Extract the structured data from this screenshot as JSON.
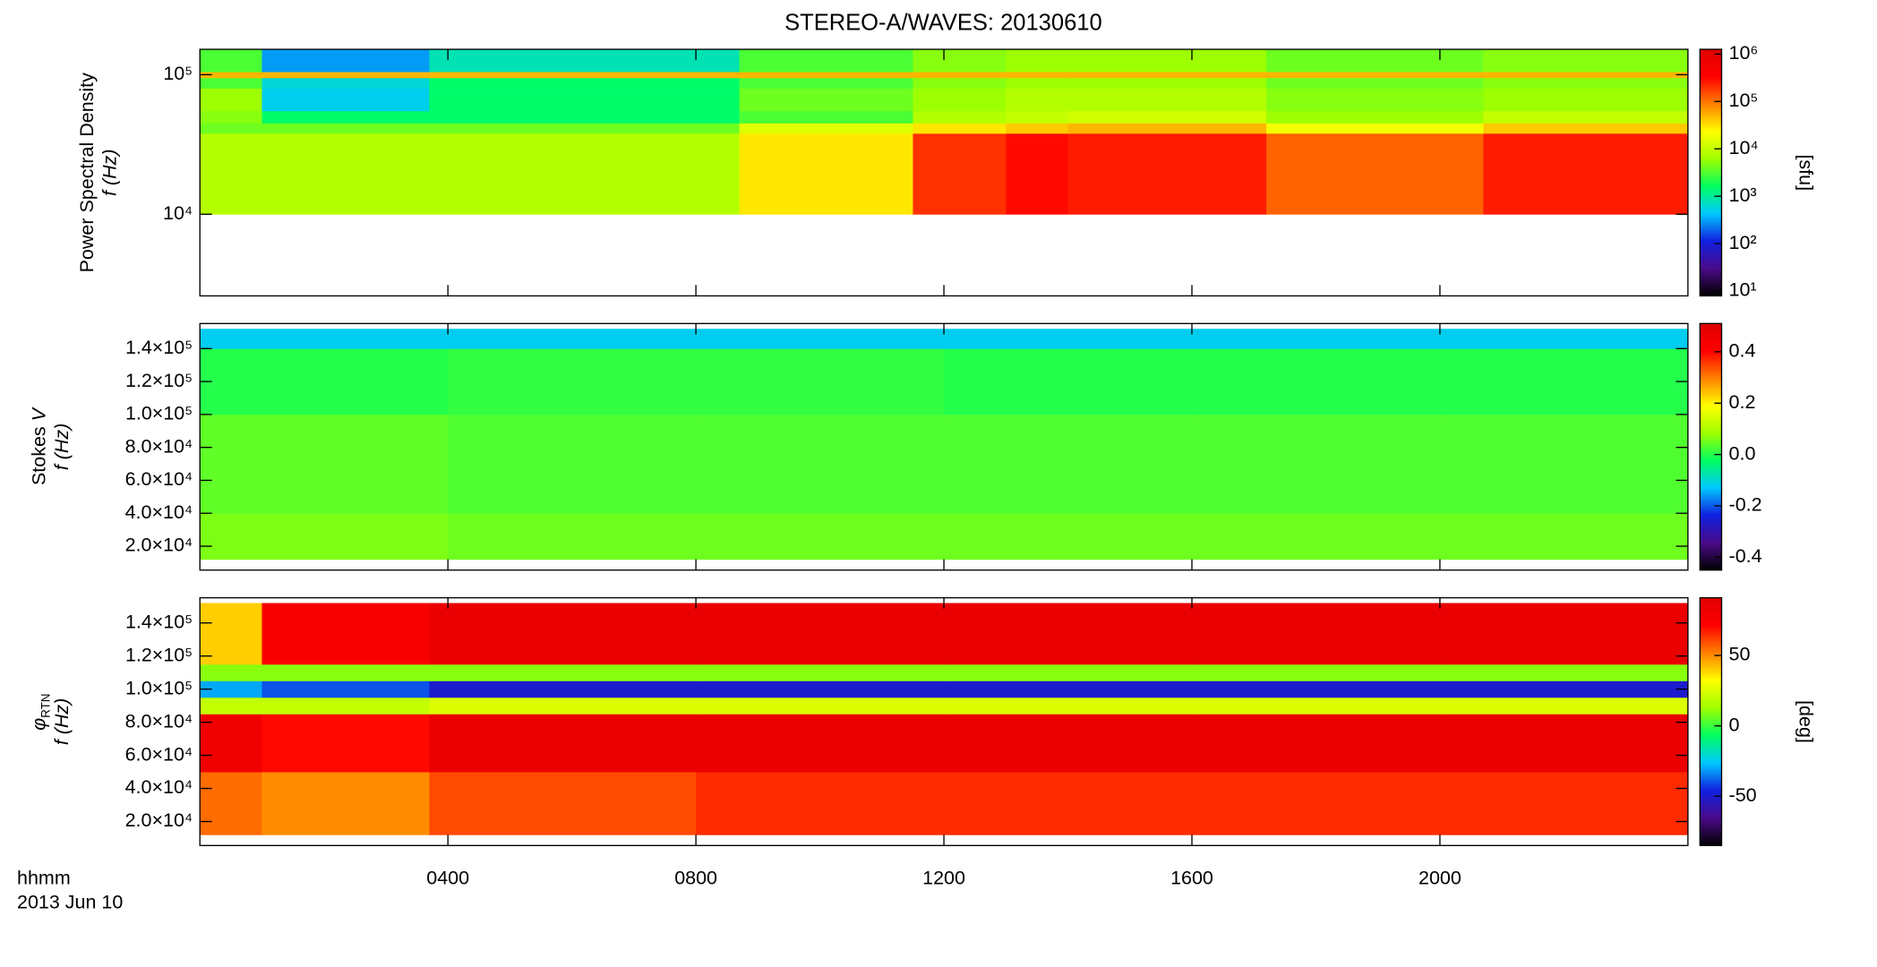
{
  "chart_data": [
    {
      "type": "heatmap",
      "title": "STEREO-A/WAVES: 20130610",
      "ylabel": "Power Spectral Density",
      "ylabel2": "f (Hz)",
      "log_y": true,
      "xlim": [
        0,
        24
      ],
      "xticks": [
        4,
        8,
        12,
        16,
        20
      ],
      "ylim": [
        2600,
        152000
      ],
      "yticks": [
        {
          "value": 10000,
          "label": "10⁴"
        },
        {
          "value": 100000,
          "label": "10⁵"
        }
      ],
      "x": [
        0,
        1,
        3.7,
        8.7,
        11.5,
        13,
        14,
        17.2,
        20.7,
        24
      ],
      "y": [
        10000,
        38000,
        45000,
        55000,
        80000,
        95000,
        105000,
        152000
      ],
      "z": [
        [
          8000,
          8000,
          8000,
          30000,
          200000,
          300000,
          250000,
          120000,
          250000
        ],
        [
          4000,
          4000,
          4000,
          15000,
          30000,
          40000,
          50000,
          20000,
          40000
        ],
        [
          5000,
          1500,
          1500,
          3000,
          8000,
          10000,
          12000,
          6000,
          10000
        ],
        [
          6000,
          500,
          1500,
          4000,
          6000,
          8000,
          8000,
          5000,
          6000
        ],
        [
          3000,
          600,
          1500,
          3000,
          5000,
          6000,
          6000,
          4000,
          5000
        ],
        [
          50000,
          50000,
          50000,
          50000,
          50000,
          50000,
          50000,
          50000,
          50000
        ],
        [
          3000,
          300,
          800,
          3000,
          5000,
          6000,
          6000,
          4000,
          5000
        ]
      ],
      "zscale": "log",
      "zlim": [
        7.9,
        1260000
      ],
      "zticks": [
        {
          "value": 10,
          "label": "10¹"
        },
        {
          "value": 100,
          "label": "10²"
        },
        {
          "value": 1000,
          "label": "10³"
        },
        {
          "value": 10000,
          "label": "10⁴"
        },
        {
          "value": 100000,
          "label": "10⁵"
        },
        {
          "value": 1000000,
          "label": "10⁶"
        }
      ],
      "zlabel": "[sfu]",
      "colormap": [
        "#000000",
        "#4a0a8a",
        "#1020e0",
        "#00c8ff",
        "#00ff60",
        "#a0ff00",
        "#ffff00",
        "#ff8000",
        "#ff0000",
        "#e00000"
      ]
    },
    {
      "type": "heatmap",
      "ylabel": "Stokes ",
      "ylabel_symbol": "V",
      "ylabel2": "f (Hz)",
      "log_y": false,
      "xlim": [
        0,
        24
      ],
      "xticks": [
        4,
        8,
        12,
        16,
        20
      ],
      "ylim": [
        5500,
        155200
      ],
      "yticks": [
        {
          "value": 20000,
          "label": "2.0×10⁴"
        },
        {
          "value": 40000,
          "label": "4.0×10⁴"
        },
        {
          "value": 60000,
          "label": "6.0×10⁴"
        },
        {
          "value": 80000,
          "label": "8.0×10⁴"
        },
        {
          "value": 100000,
          "label": "1.0×10⁵"
        },
        {
          "value": 120000,
          "label": "1.2×10⁵"
        },
        {
          "value": 140000,
          "label": "1.4×10⁵"
        }
      ],
      "x": [
        0,
        4,
        8,
        12,
        16,
        20,
        24
      ],
      "y": [
        12000,
        40000,
        100000,
        140000,
        152000
      ],
      "z": [
        [
          0.06,
          0.05,
          0.05,
          0.05,
          0.05,
          0.05
        ],
        [
          0.04,
          0.03,
          0.03,
          0.03,
          0.03,
          0.03
        ],
        [
          0.0,
          0.01,
          0.01,
          0.0,
          0.0,
          0.0
        ],
        [
          -0.12,
          -0.12,
          -0.12,
          -0.12,
          -0.12,
          -0.12
        ]
      ],
      "zscale": "linear",
      "zlim": [
        -0.45,
        0.51
      ],
      "zticks": [
        -0.4,
        -0.2,
        {
          "value": 0,
          "label": "0.0"
        },
        0.2,
        0.4
      ],
      "colormap": [
        "#000000",
        "#4a0a8a",
        "#1020e0",
        "#00c8ff",
        "#00ff60",
        "#a0ff00",
        "#ffff00",
        "#ff8000",
        "#ff0000",
        "#e00000"
      ]
    },
    {
      "type": "heatmap",
      "ylabel": "φ",
      "ylabel_sub": "RTN",
      "ylabel2": "f (Hz)",
      "log_y": false,
      "xlim": [
        0,
        24
      ],
      "xticks": [
        {
          "value": 4,
          "label": "0400"
        },
        {
          "value": 8,
          "label": "0800"
        },
        {
          "value": 12,
          "label": "1200"
        },
        {
          "value": 16,
          "label": "1600"
        },
        {
          "value": 20,
          "label": "2000"
        }
      ],
      "xlabel": "hhmm",
      "xlabel2": "2013 Jun 10",
      "ylim": [
        5500,
        155200
      ],
      "yticks": [
        {
          "value": 20000,
          "label": "2.0×10⁴"
        },
        {
          "value": 40000,
          "label": "4.0×10⁴"
        },
        {
          "value": 60000,
          "label": "6.0×10⁴"
        },
        {
          "value": 80000,
          "label": "8.0×10⁴"
        },
        {
          "value": 100000,
          "label": "1.0×10⁵"
        },
        {
          "value": 120000,
          "label": "1.2×10⁵"
        },
        {
          "value": 140000,
          "label": "1.4×10⁵"
        }
      ],
      "x": [
        0,
        1,
        3.7,
        8,
        12,
        16,
        20,
        24
      ],
      "y": [
        12000,
        50000,
        85000,
        95000,
        105000,
        115000,
        152000
      ],
      "z": [
        [
          55,
          50,
          60,
          65,
          65,
          65,
          65
        ],
        [
          80,
          70,
          85,
          85,
          85,
          85,
          85
        ],
        [
          20,
          20,
          25,
          25,
          25,
          25,
          25
        ],
        [
          -30,
          -40,
          -50,
          -50,
          -50,
          -50,
          -50
        ],
        [
          10,
          10,
          10,
          10,
          10,
          10,
          10
        ],
        [
          40,
          75,
          85,
          85,
          85,
          85,
          85
        ]
      ],
      "zscale": "linear",
      "zlim": [
        -85,
        91
      ],
      "zticks": [
        -50,
        0,
        50
      ],
      "zlabel": "[deg]",
      "colormap": [
        "#000000",
        "#4a0a8a",
        "#1020e0",
        "#00c8ff",
        "#00ff60",
        "#a0ff00",
        "#ffff00",
        "#ff8000",
        "#ff0000",
        "#e00000"
      ]
    }
  ]
}
